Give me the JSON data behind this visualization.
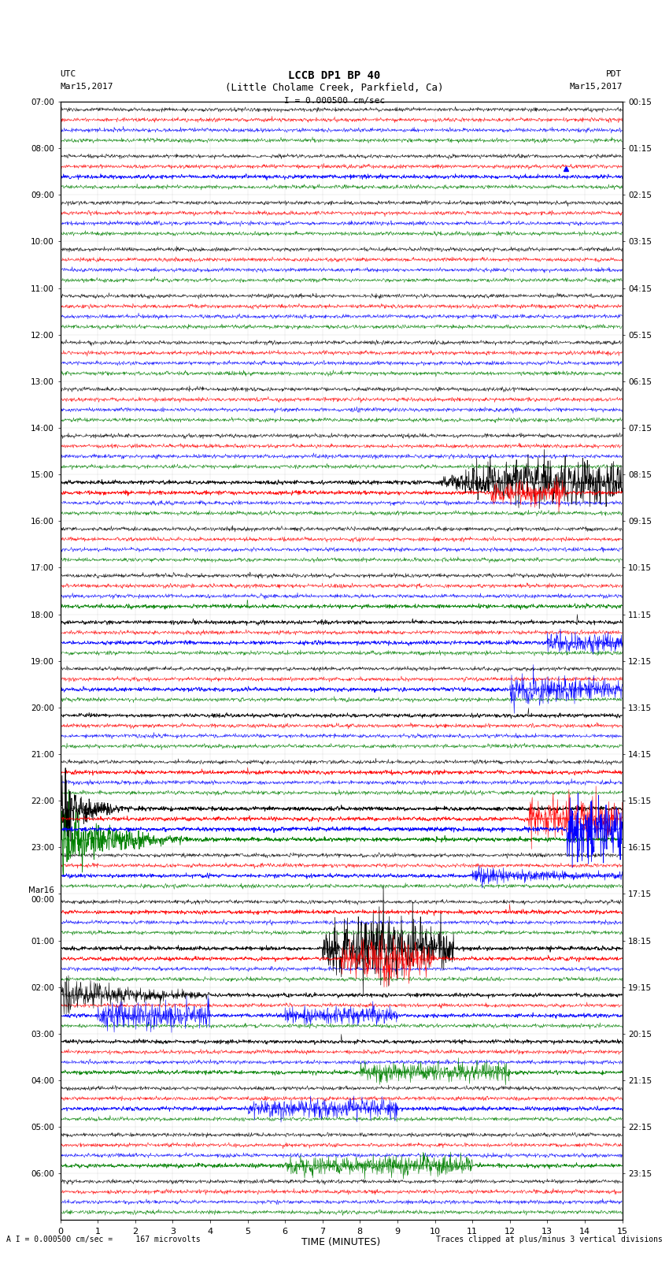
{
  "title_line1": "LCCB DP1 BP 40",
  "title_line2": "(Little Cholame Creek, Parkfield, Ca)",
  "scale_text": "I = 0.000500 cm/sec",
  "left_label": "UTC",
  "right_label": "PDT",
  "left_date": "Mar15,2017",
  "right_date": "Mar15,2017",
  "xlabel": "TIME (MINUTES)",
  "footer_left": "A I = 0.000500 cm/sec =     167 microvolts",
  "footer_right": "Traces clipped at plus/minus 3 vertical divisions",
  "utc_labels": [
    "07:00",
    "08:00",
    "09:00",
    "10:00",
    "11:00",
    "12:00",
    "13:00",
    "14:00",
    "15:00",
    "16:00",
    "17:00",
    "18:00",
    "19:00",
    "20:00",
    "21:00",
    "22:00",
    "23:00",
    "Mar16\n00:00",
    "01:00",
    "02:00",
    "03:00",
    "04:00",
    "05:00",
    "06:00"
  ],
  "pdt_labels": [
    "00:15",
    "01:15",
    "02:15",
    "03:15",
    "04:15",
    "05:15",
    "06:15",
    "07:15",
    "08:15",
    "09:15",
    "10:15",
    "11:15",
    "12:15",
    "13:15",
    "14:15",
    "15:15",
    "16:15",
    "17:15",
    "18:15",
    "19:15",
    "20:15",
    "21:15",
    "22:15",
    "23:15"
  ],
  "n_rows": 24,
  "traces_per_row": 4,
  "trace_colors": [
    "black",
    "red",
    "blue",
    "green"
  ],
  "bg_color": "white",
  "x_min": 0,
  "x_max": 15,
  "x_ticks": [
    0,
    1,
    2,
    3,
    4,
    5,
    6,
    7,
    8,
    9,
    10,
    11,
    12,
    13,
    14,
    15
  ],
  "noise_amplitude": 0.04
}
